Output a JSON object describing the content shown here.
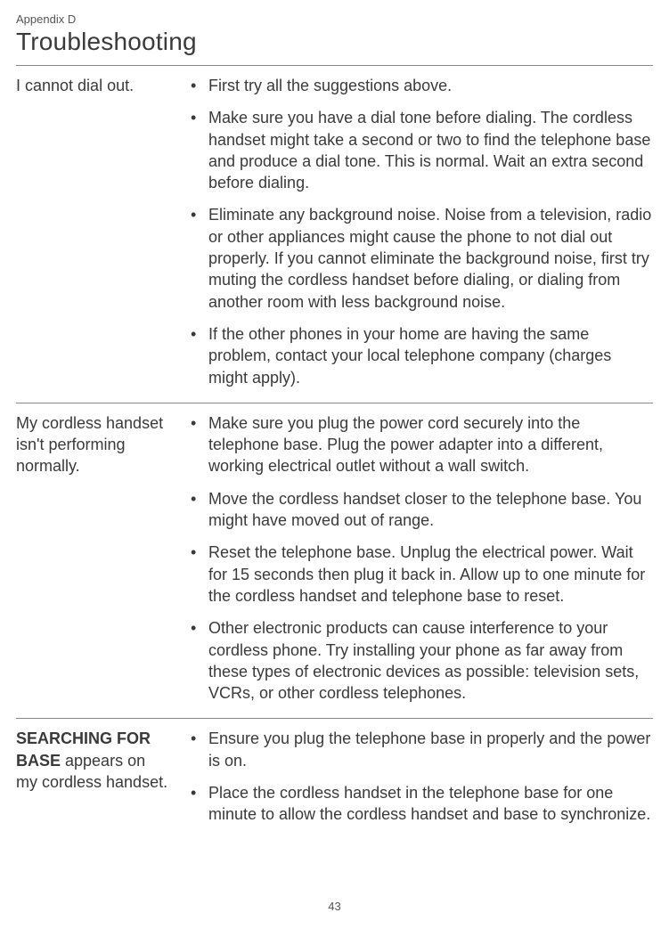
{
  "header": {
    "appendix": "Appendix D",
    "title": "Troubleshooting"
  },
  "sections": [
    {
      "problem_bold": "",
      "problem_rest": "I cannot dial out.",
      "items": [
        "First try all the suggestions above.",
        "Make sure you have a dial tone before dialing. The cordless handset might take a second or two to find the telephone base and produce a dial tone. This is normal. Wait an extra second before dialing.",
        "Eliminate any background noise. Noise from a television, radio or other appliances might cause the phone to not dial out properly. If you cannot eliminate the background noise, first try muting the cordless handset before dialing, or dialing from another room with less background noise.",
        "If the other phones in your home are having the same problem, contact your local telephone company (charges might apply)."
      ]
    },
    {
      "problem_bold": "",
      "problem_rest": "My cordless handset isn't performing normally.",
      "items": [
        "Make sure you plug the power cord securely into the telephone base. Plug the power adapter into a different, working electrical outlet without a wall switch.",
        "Move the cordless handset closer to the telephone base. You might have moved out of range.",
        "Reset the telephone base. Unplug the electrical power. Wait for 15 seconds then plug it back in. Allow up to one minute for the cordless handset and telephone base to reset.",
        "Other electronic products can cause interference to your cordless phone. Try installing your phone as far away from these types of electronic devices as possible: television sets, VCRs, or other cordless telephones."
      ]
    },
    {
      "problem_bold": "SEARCHING FOR BASE",
      "problem_rest": " appears on my cordless handset.",
      "items": [
        "Ensure you plug the telephone base in properly and the power is on.",
        "Place the cordless handset in the telephone base for one minute to allow the cordless handset and base to synchronize."
      ]
    }
  ],
  "page_number": "43"
}
